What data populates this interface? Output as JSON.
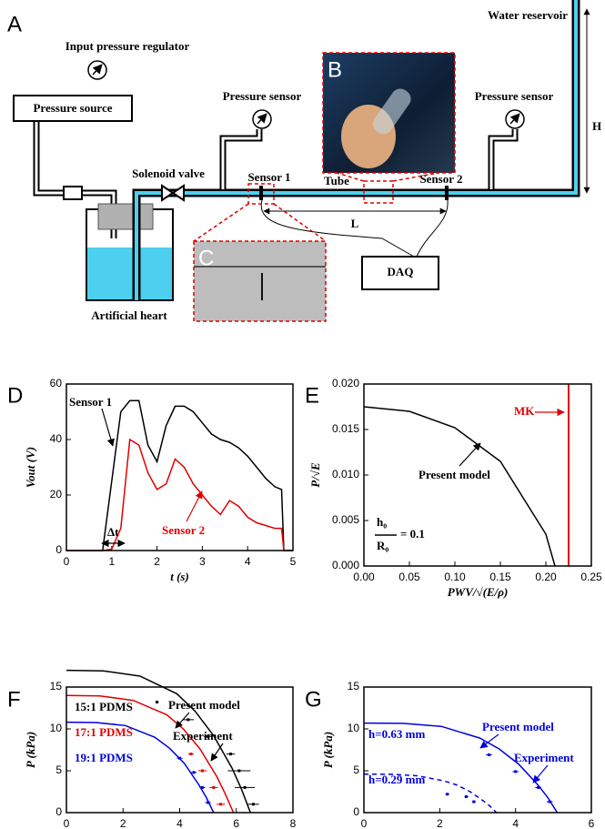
{
  "diagram": {
    "panels": [
      "A",
      "B",
      "C"
    ],
    "labels": [
      "Input pressure regulator",
      "Pressure source",
      "Pressure sensor",
      "Solenoid valve",
      "Sensor 1",
      "Tube",
      "Sensor 2",
      "Pressure sensor",
      "Water reservoir",
      "H",
      "L",
      "DAQ",
      "Artificial heart"
    ]
  },
  "chart_data": [
    {
      "type": "line",
      "panel": "D",
      "xlabel": "t (s)",
      "ylabel": "Vout (V)",
      "xlim": [
        0,
        5
      ],
      "ylim": [
        0,
        60
      ],
      "xticks": [
        0,
        1,
        2,
        3,
        4,
        5
      ],
      "yticks": [
        0,
        20,
        40,
        60
      ],
      "x": [
        0,
        0.8,
        1.0,
        1.2,
        1.4,
        1.6,
        1.8,
        2.0,
        2.2,
        2.4,
        2.6,
        2.8,
        3.0,
        3.2,
        3.4,
        3.6,
        3.8,
        4.0,
        4.2,
        4.4,
        4.6,
        4.75,
        4.8,
        5.0
      ],
      "series": [
        {
          "name": "Sensor 1",
          "color": "#000000",
          "values": [
            0,
            0,
            25,
            50,
            54,
            54,
            38,
            32,
            45,
            52,
            52,
            50,
            46,
            42,
            40,
            39,
            37,
            34,
            30,
            26,
            23,
            22,
            0,
            0
          ]
        },
        {
          "name": "Sensor 2",
          "color": "#e00000",
          "values": [
            0,
            0,
            0.5,
            8,
            40,
            38,
            28,
            22,
            24,
            33,
            30,
            24,
            20,
            16,
            13,
            18,
            16,
            12,
            10,
            9,
            8,
            8,
            0,
            0
          ]
        }
      ],
      "annotations": [
        "Δt"
      ]
    },
    {
      "type": "line",
      "panel": "E",
      "xlabel": "PWV/√(E/ρ)",
      "ylabel": "P/√E",
      "xlim": [
        0,
        0.25
      ],
      "ylim": [
        0,
        0.02
      ],
      "xticks": [
        {
          "value": 0,
          "label": "0.00"
        },
        {
          "value": 0.05,
          "label": "0.05"
        },
        {
          "value": 0.1,
          "label": "0.10"
        },
        {
          "value": 0.15,
          "label": "0.15"
        },
        {
          "value": 0.2,
          "label": "0.20"
        },
        {
          "value": 0.25,
          "label": "0.25"
        }
      ],
      "yticks": [
        {
          "value": 0,
          "label": "0.000"
        },
        {
          "value": 0.005,
          "label": "0.005"
        },
        {
          "value": 0.01,
          "label": "0.010"
        },
        {
          "value": 0.015,
          "label": "0.015"
        },
        {
          "value": 0.02,
          "label": "0.020"
        }
      ],
      "series": [
        {
          "name": "Present model",
          "color": "#000000",
          "x": [
            0,
            0.05,
            0.1,
            0.15,
            0.2,
            0.21
          ],
          "values": [
            0.0175,
            0.017,
            0.0152,
            0.0115,
            0.0035,
            0
          ]
        },
        {
          "name": "MK",
          "color": "#e00000",
          "x": [
            0.225,
            0.225
          ],
          "values": [
            0,
            0.02
          ]
        }
      ],
      "annotations": [
        "h₀",
        "R₀",
        "= 0.1"
      ]
    },
    {
      "type": "line",
      "panel": "F",
      "xlabel": "PWV (m/s)",
      "ylabel": "P (kPa)",
      "xlim": [
        0,
        8
      ],
      "ylim": [
        0,
        15
      ],
      "xticks": [
        0,
        2,
        4,
        6,
        8
      ],
      "yticks": [
        0,
        5,
        10,
        15
      ],
      "series": [
        {
          "name": "15:1 PDMS",
          "color": "#000000",
          "x": [
            0,
            1.3,
            2.6,
            3.9,
            4.55,
            5.2,
            5.85,
            6.18,
            6.5
          ],
          "values": [
            17,
            16.93,
            16.3,
            14.2,
            12.1,
            9.2,
            5.3,
            2.8,
            0
          ]
        },
        {
          "name": "17:1 PDMS",
          "color": "#e00000",
          "x": [
            0,
            1.18,
            2.36,
            3.54,
            4.13,
            4.72,
            5.31,
            5.6,
            5.9
          ],
          "values": [
            14,
            13.95,
            13.4,
            11.7,
            10,
            7.6,
            4.3,
            2.3,
            0
          ]
        },
        {
          "name": "19:1 PDMS",
          "color": "#0000e0",
          "x": [
            0,
            1.04,
            2.08,
            3.12,
            3.64,
            4.16,
            4.68,
            4.94,
            5.2
          ],
          "values": [
            10.8,
            10.76,
            10.4,
            9,
            7.7,
            5.9,
            3.3,
            1.8,
            0
          ]
        },
        {
          "type": "scatter",
          "color": "#000000",
          "x": [
            3.2,
            4.3,
            5.0,
            5.8,
            6.1,
            6.3,
            6.6
          ],
          "values": [
            13.2,
            11.1,
            9.1,
            7,
            5,
            3,
            1
          ],
          "xerr": [
            0.05,
            0.2,
            0.15,
            0.15,
            0.4,
            0.35,
            0.2
          ]
        },
        {
          "type": "scatter",
          "color": "#e00000",
          "x": [
            4.4,
            4.8,
            5.2,
            5.45
          ],
          "values": [
            7,
            5,
            3,
            1
          ],
          "xerr": [
            0.1,
            0.15,
            0.15,
            0.15
          ]
        },
        {
          "type": "scatter",
          "color": "#0000e0",
          "x": [
            4.0,
            4.5,
            4.8,
            5.0
          ],
          "values": [
            6.5,
            4.8,
            3,
            1.2
          ],
          "xerr": [
            0.1,
            0.1,
            0.1,
            0.1
          ]
        }
      ],
      "annotations": [
        "Present model",
        "Experiment"
      ]
    },
    {
      "type": "line",
      "panel": "G",
      "xlabel": "PWV (m/s)",
      "ylabel": "P (kPa)",
      "xlim": [
        0,
        6
      ],
      "ylim": [
        0,
        15
      ],
      "xticks": [
        0,
        2,
        4,
        6
      ],
      "yticks": [
        0,
        5,
        10,
        15
      ],
      "series": [
        {
          "name": "h=0.63 mm",
          "color": "#0000e0",
          "x": [
            0,
            1.02,
            2.04,
            3.06,
            3.57,
            4.08,
            4.59,
            4.85,
            5.1
          ],
          "values": [
            10.7,
            10.66,
            10.3,
            8.9,
            7.6,
            5.8,
            3.3,
            1.8,
            0
          ]
        },
        {
          "name": "h=0.29 mm",
          "color": "#0000e0",
          "style": "dashed",
          "x": [
            0,
            0.7,
            1.4,
            2.1,
            2.45,
            2.8,
            3.15,
            3.33,
            3.5
          ],
          "values": [
            4.6,
            4.58,
            4.4,
            3.8,
            3.3,
            2.5,
            1.4,
            0.75,
            0
          ]
        },
        {
          "type": "scatter",
          "color": "#0000e0",
          "x": [
            3.3,
            4.0,
            4.6,
            4.9
          ],
          "values": [
            6.9,
            4.9,
            3.0,
            1.3
          ],
          "xerr": [
            0.08,
            0.08,
            0.08,
            0.08
          ]
        },
        {
          "type": "scatter",
          "color": "#0000e0",
          "x": [
            2.2,
            2.7,
            2.9
          ],
          "values": [
            2.2,
            1.9,
            1.3
          ],
          "xerr": [
            0.05,
            0.05,
            0.05
          ]
        }
      ],
      "annotations": [
        "Present model",
        "Experiment"
      ]
    }
  ]
}
